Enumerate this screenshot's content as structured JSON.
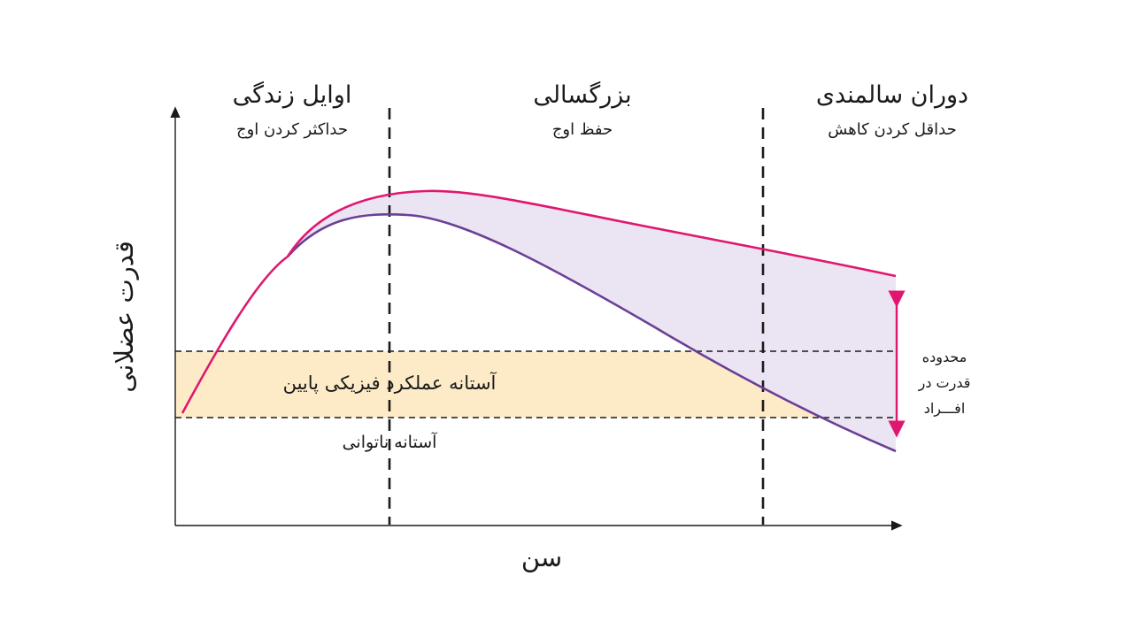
{
  "axes": {
    "y_label": "قدرت عضلانی",
    "x_label": "سن"
  },
  "stages": [
    {
      "title": "اوایل زندگی",
      "subtitle": "حداکثر کردن اوج"
    },
    {
      "title": "بزرگسالی",
      "subtitle": "حفظ اوج"
    },
    {
      "title": "دوران سالمندی",
      "subtitle": "حداقل کردن کاهش"
    }
  ],
  "band": {
    "label": "آستانه عملکرد فیزیکی پایین",
    "fill": "#fdebc8"
  },
  "threshold": {
    "label": "آستانه ناتوانی"
  },
  "range": {
    "lines": [
      "محدوده",
      "قدرت در",
      "افـــراد"
    ],
    "color": "#e0176f"
  },
  "colors": {
    "upper_curve": "#e0176f",
    "lower_curve": "#6a3f96",
    "region_fill": "#ebe4f2",
    "axis": "#1a1a1a"
  }
}
